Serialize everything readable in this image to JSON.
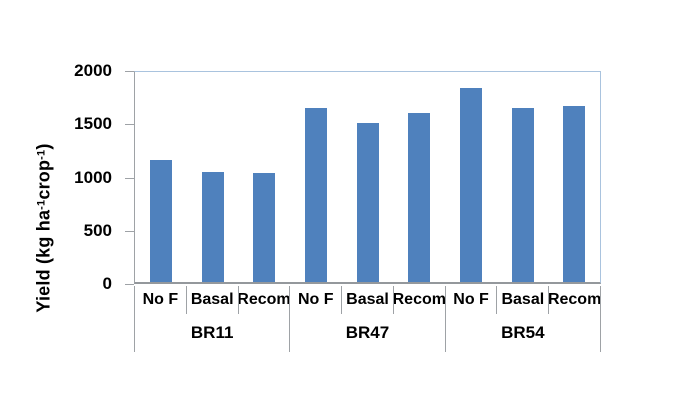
{
  "chart_data": {
    "type": "bar",
    "title": "",
    "ylabel_plain": "Yield (kg ha-1crop-1)",
    "ylabel_parts": [
      {
        "t": "Yield (kg ha"
      },
      {
        "t": "-1",
        "sup": true
      },
      {
        "t": "crop"
      },
      {
        "t": "-1",
        "sup": true
      },
      {
        "t": ")"
      }
    ],
    "ylim": [
      0,
      2000
    ],
    "yticks": [
      0,
      500,
      1000,
      1500,
      2000
    ],
    "grid": false,
    "legend": "none",
    "bar_color": "#4F81BD",
    "plot_border_color": "#A9C3DE",
    "axis_color": "#9EA2A6",
    "sub_categories": [
      "No F",
      "Basal",
      "Recom"
    ],
    "groups": [
      {
        "label": "BR11",
        "bars": [
          {
            "label": "No F",
            "value": 1160
          },
          {
            "label": "Basal",
            "value": 1045
          },
          {
            "label": "Recom",
            "value": 1035
          }
        ]
      },
      {
        "label": "BR47",
        "bars": [
          {
            "label": "No F",
            "value": 1660
          },
          {
            "label": "Basal",
            "value": 1515
          },
          {
            "label": "Recom",
            "value": 1610
          }
        ]
      },
      {
        "label": "BR54",
        "bars": [
          {
            "label": "No F",
            "value": 1845
          },
          {
            "label": "Basal",
            "value": 1655
          },
          {
            "label": "Recom",
            "value": 1680
          }
        ]
      }
    ]
  }
}
